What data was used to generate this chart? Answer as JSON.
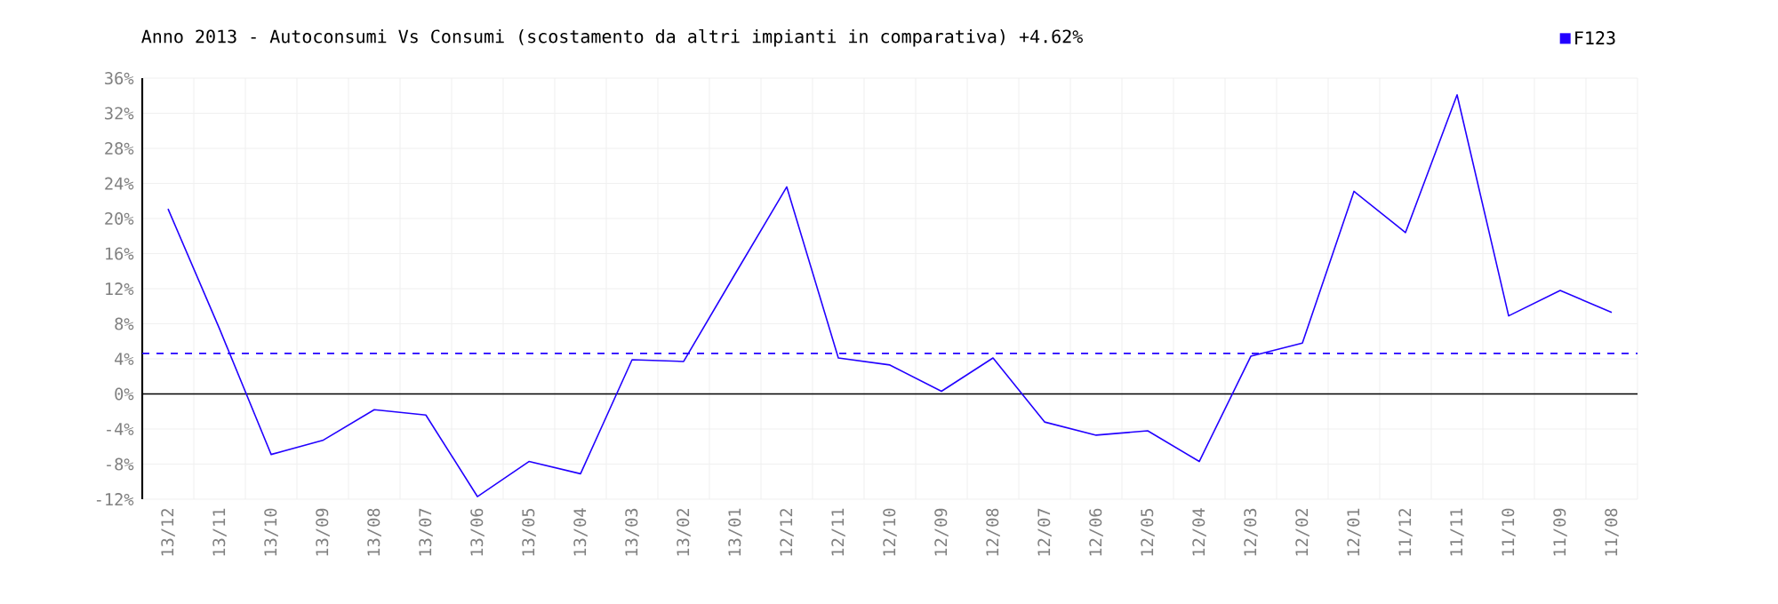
{
  "chart_data": {
    "type": "line",
    "title": "Anno 2013 - Autoconsumi Vs Consumi (scostamento da altri impianti in comparativa) +4.62%",
    "categories": [
      "13/12",
      "13/11",
      "13/10",
      "13/09",
      "13/08",
      "13/07",
      "13/06",
      "13/05",
      "13/04",
      "13/03",
      "13/02",
      "13/01",
      "12/12",
      "12/11",
      "12/10",
      "12/09",
      "12/08",
      "12/07",
      "12/06",
      "12/05",
      "12/04",
      "12/03",
      "12/02",
      "12/01",
      "11/12",
      "11/11",
      "11/10",
      "11/09",
      "11/08"
    ],
    "series": [
      {
        "name": "F123",
        "color": "#2200ff",
        "values": [
          21.1,
          7.4,
          -6.9,
          -5.3,
          -1.8,
          -2.4,
          -11.7,
          -7.7,
          -9.1,
          3.9,
          3.7,
          13.7,
          23.6,
          4.1,
          3.3,
          0.3,
          4.1,
          -3.2,
          -4.7,
          -4.2,
          -7.7,
          4.3,
          5.8,
          23.1,
          18.4,
          34.1,
          8.9,
          11.8,
          9.3
        ]
      }
    ],
    "ylim": [
      -12,
      36
    ],
    "yticks": [
      {
        "value": -12,
        "label": "-12%"
      },
      {
        "value": -8,
        "label": "-8%"
      },
      {
        "value": -4,
        "label": "-4%"
      },
      {
        "value": 0,
        "label": "0%"
      },
      {
        "value": 4,
        "label": "4%"
      },
      {
        "value": 8,
        "label": "8%"
      },
      {
        "value": 12,
        "label": "12%"
      },
      {
        "value": 16,
        "label": "16%"
      },
      {
        "value": 20,
        "label": "20%"
      },
      {
        "value": 24,
        "label": "24%"
      },
      {
        "value": 28,
        "label": "28%"
      },
      {
        "value": 32,
        "label": "32%"
      },
      {
        "value": 36,
        "label": "36%"
      }
    ],
    "ref_lines": [
      {
        "axis": "y",
        "value": 4.62,
        "color": "#2200ff",
        "line_style": "dashed"
      }
    ],
    "grid": true,
    "legend": "top right",
    "marker": "none",
    "line_style": "solid"
  }
}
